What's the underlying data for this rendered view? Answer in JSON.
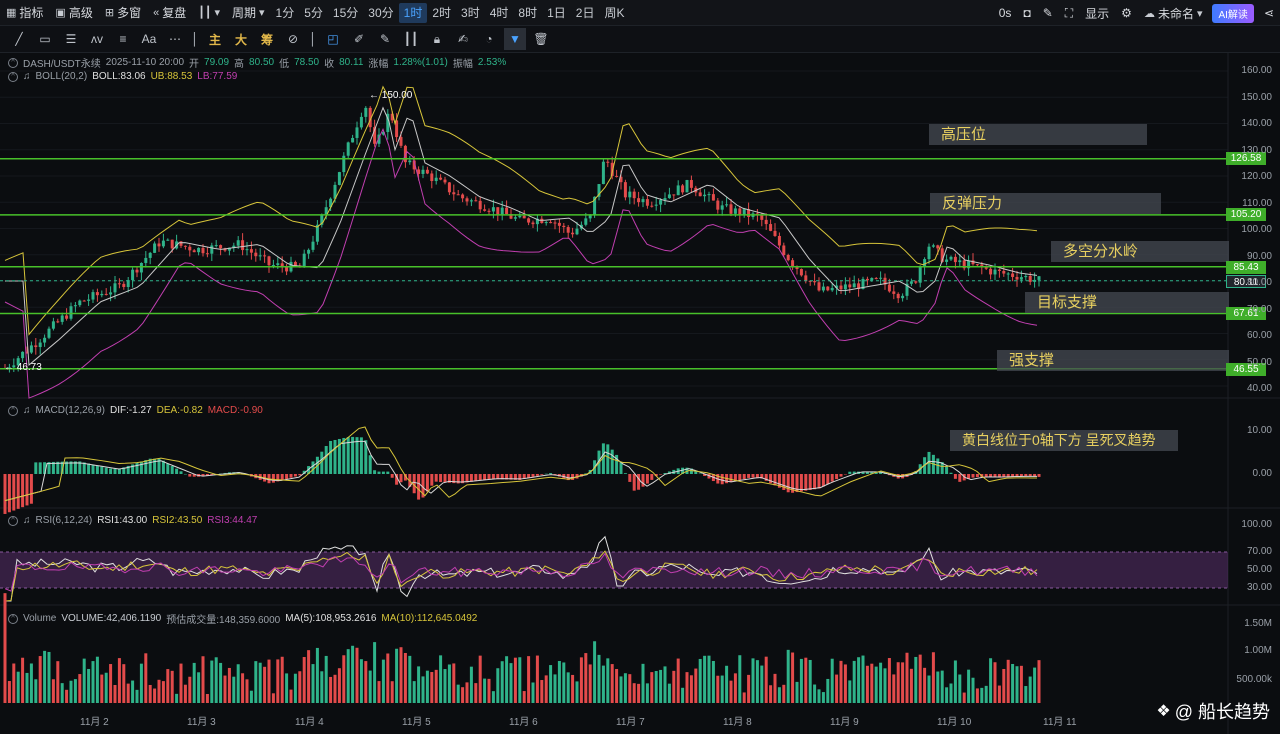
{
  "toolbar": {
    "indicators": "指标",
    "advanced": "高级",
    "multi_window": "多窗",
    "replay": "复盘",
    "period": "周期",
    "timeframes": [
      "1分",
      "5分",
      "15分",
      "30分",
      "1时",
      "2时",
      "3时",
      "4时",
      "8时",
      "1日",
      "2日",
      "周K"
    ],
    "active_timeframe": "1时",
    "countdown": "0s",
    "display": "显示",
    "layout_name": "未命名",
    "ai_label": "AI解读"
  },
  "drawing_tools": {
    "main": "主",
    "big": "大",
    "chips": "筹",
    "text_tool": "Aa"
  },
  "legend": {
    "symbol": "DASH/USDT永续",
    "datetime": "2025-11-10 20:00",
    "open_label": "开",
    "open": "79.09",
    "high_label": "高",
    "high": "80.50",
    "low_label": "低",
    "low": "78.50",
    "close_label": "收",
    "close": "80.11",
    "change_label": "涨幅",
    "change": "1.28%(1.01)",
    "amplitude_label": "振幅",
    "amplitude": "2.53%",
    "boll_name": "BOLL(20,2)",
    "boll": "BOLL:83.06",
    "ub": "UB:88.53",
    "lb": "LB:77.59",
    "macd_name": "MACD(12,26,9)",
    "dif": "DIF:-1.27",
    "dea": "DEA:-0.82",
    "macd": "MACD:-0.90",
    "rsi_name": "RSI(6,12,24)",
    "rsi1": "RSI1:43.00",
    "rsi2": "RSI2:43.50",
    "rsi3": "RSI3:44.47",
    "vol_name": "Volume",
    "volume": "VOLUME:42,406.1190",
    "est_volume": "预估成交量:148,359.6000",
    "ma5": "MA(5):108,953.2616",
    "ma10": "MA(10):112,645.0492"
  },
  "annotations": {
    "high_pressure": "高压位",
    "rebound_pressure": "反弹压力",
    "bull_bear_line": "多空分水岭",
    "target_support": "目标支撑",
    "strong_support": "强支撑",
    "macd_note": "黄白线位于0轴下方 呈死叉趋势"
  },
  "price_marks": {
    "high_label": "← 150.00",
    "low_label": "← 46.73"
  },
  "level_tags": [
    "126.58",
    "105.20",
    "85.43",
    "80.11",
    "67.61",
    "46.55"
  ],
  "price_axis": [
    "160.00",
    "150.00",
    "140.00",
    "130.00",
    "120.00",
    "110.00",
    "100.00",
    "90.00",
    "80.00",
    "70.00",
    "60.00",
    "50.00",
    "40.00"
  ],
  "macd_axis": [
    "10.00",
    "0.00"
  ],
  "rsi_axis": [
    "100.00",
    "70.00",
    "50.00",
    "30.00"
  ],
  "vol_axis": [
    "1.50M",
    "1.00M",
    "500.00k"
  ],
  "dates": [
    "11月 2",
    "11月 3",
    "11月 4",
    "11月 5",
    "11月 6",
    "11月 7",
    "11月 8",
    "11月 9",
    "11月 10",
    "11月 11"
  ],
  "watermark": "@ 船长趋势",
  "colors": {
    "up": "#2fb38a",
    "down": "#e34b4b",
    "level": "#48c12a",
    "boll_upper": "#d7c53a",
    "boll_mid": "#c8c8c8",
    "boll_lower": "#c13fb0",
    "rsi_band": "#5a2f6a"
  }
}
